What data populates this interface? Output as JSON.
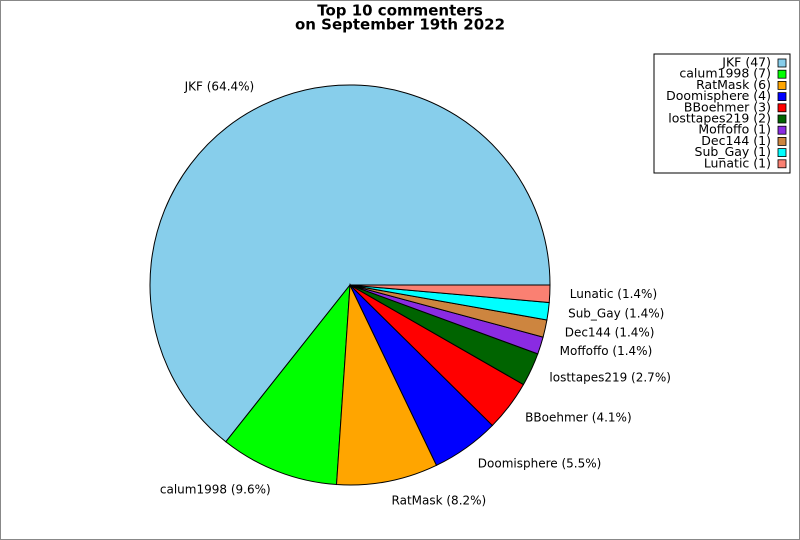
{
  "chart_data": {
    "type": "pie",
    "title": [
      "Top 10 commenters",
      "on September 19th 2022"
    ],
    "categories": [
      "JKF (47)",
      "calum1998 (7)",
      "RatMask (6)",
      "Doomisphere (4)",
      "BBoehmer (3)",
      "losttapes219 (2)",
      "Moffoffo (1)",
      "Dec144 (1)",
      "Sub_Gay (1)",
      "Lunatic (1)"
    ],
    "values": [
      64.4,
      9.6,
      8.2,
      5.5,
      4.1,
      2.7,
      1.4,
      1.4,
      1.4,
      1.4
    ],
    "value_labels": [
      "JKF (64.4%)",
      "calum1998 (9.6%)",
      "RatMask (8.2%)",
      "Doomisphere (5.5%)",
      "BBoehmer (4.1%)",
      "losttapes219 (2.7%)",
      "Moffoffo (1.4%)",
      "Dec144 (1.4%)",
      "Sub_Gay (1.4%)",
      "Lunatic (1.4%)"
    ],
    "colors": [
      "#87ceeb",
      "#00ff00",
      "#ffa500",
      "#0000ff",
      "#ff0000",
      "#006400",
      "#8a2be2",
      "#cd853f",
      "#00ffff",
      "#fa8072"
    ],
    "legend": "upper right"
  }
}
